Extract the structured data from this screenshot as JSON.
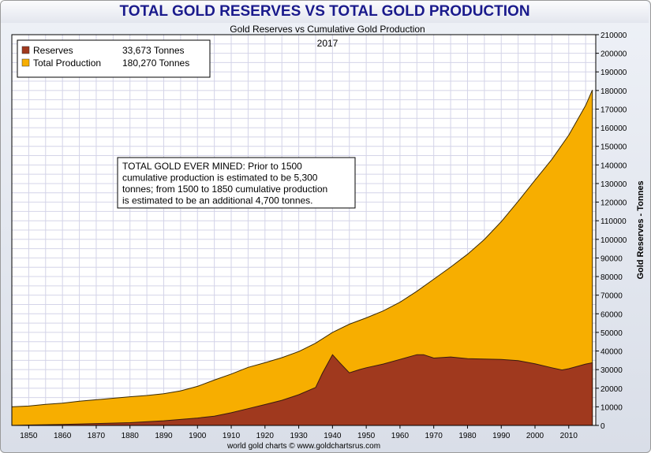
{
  "banner_title": "TOTAL GOLD RESERVES VS TOTAL GOLD PRODUCTION",
  "chart_data": {
    "type": "area",
    "title": "Gold Reserves vs Cumulative Gold Production",
    "subtitle": "2017",
    "ylabel": "Gold Reserves - Tonnes",
    "xlabel": "",
    "footer": "world gold charts © www.goldchartsrus.com",
    "xlim": [
      1845,
      2018
    ],
    "ylim": [
      0,
      210000
    ],
    "x_ticks": [
      1850,
      1860,
      1870,
      1880,
      1890,
      1900,
      1910,
      1920,
      1930,
      1940,
      1950,
      1960,
      1970,
      1980,
      1990,
      2000,
      2010
    ],
    "y_ticks": [
      0,
      10000,
      20000,
      30000,
      40000,
      50000,
      60000,
      70000,
      80000,
      90000,
      100000,
      110000,
      120000,
      130000,
      140000,
      150000,
      160000,
      170000,
      180000,
      190000,
      200000,
      210000
    ],
    "grid": true,
    "legend_placement": "top-left",
    "annotation": "TOTAL GOLD EVER MINED: Prior to 1500 cumulative production is estimated to be 5,300 tonnes; from 1500 to 1850 cumulative production is estimated to be an additional 4,700 tonnes.",
    "colors": {
      "reserves": "#a0391e",
      "production": "#f7ae00",
      "grid": "#d4d4e8",
      "background": "#ffffff"
    },
    "series": [
      {
        "name": "Total Production",
        "legend_value": "180,270 Tonnes",
        "color": "#f7ae00",
        "x": [
          1845,
          1850,
          1855,
          1860,
          1865,
          1870,
          1875,
          1880,
          1885,
          1890,
          1895,
          1900,
          1905,
          1910,
          1915,
          1920,
          1925,
          1930,
          1935,
          1940,
          1945,
          1950,
          1955,
          1960,
          1965,
          1970,
          1975,
          1980,
          1985,
          1990,
          1995,
          2000,
          2005,
          2010,
          2015,
          2017
        ],
        "values": [
          10000,
          10400,
          11300,
          12000,
          13000,
          13800,
          14600,
          15400,
          16100,
          17000,
          18600,
          21000,
          24400,
          27600,
          31200,
          33700,
          36400,
          39700,
          44200,
          50000,
          54400,
          57800,
          61500,
          66200,
          72100,
          78600,
          85100,
          92000,
          99900,
          109500,
          120400,
          131800,
          143000,
          156000,
          172000,
          180270
        ]
      },
      {
        "name": "Reserves",
        "legend_value": "33,673 Tonnes",
        "color": "#a0391e",
        "x": [
          1845,
          1850,
          1860,
          1870,
          1880,
          1890,
          1895,
          1900,
          1905,
          1910,
          1915,
          1920,
          1925,
          1930,
          1935,
          1937,
          1940,
          1942,
          1945,
          1948,
          1950,
          1955,
          1960,
          1965,
          1967,
          1970,
          1975,
          1980,
          1985,
          1990,
          1995,
          2000,
          2005,
          2008,
          2010,
          2015,
          2017
        ],
        "values": [
          0,
          200,
          500,
          1000,
          1500,
          2500,
          3200,
          4000,
          5000,
          6800,
          9000,
          11200,
          13500,
          16500,
          20400,
          28000,
          38000,
          34000,
          28300,
          30000,
          31000,
          33000,
          35500,
          38000,
          38000,
          36200,
          36800,
          35900,
          35700,
          35500,
          34800,
          33100,
          31000,
          29800,
          30500,
          33000,
          33673
        ]
      }
    ]
  }
}
